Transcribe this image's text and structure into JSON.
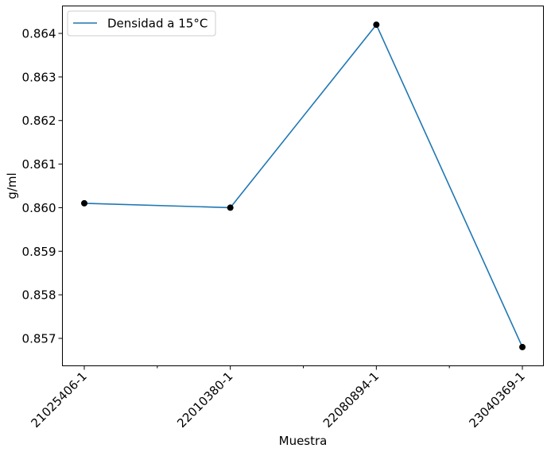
{
  "chart_data": {
    "type": "line",
    "title": "",
    "xlabel": "Muestra",
    "ylabel": "g/ml",
    "categories": [
      "21025406-1",
      "22010380-1",
      "22080894-1",
      "23040369-1"
    ],
    "series": [
      {
        "name": "Densidad a 15°C",
        "values": [
          0.8601,
          0.86,
          0.8642,
          0.8568
        ],
        "color": "#1f77b4",
        "marker_color": "#000000"
      }
    ],
    "yticks": [
      "0.857",
      "0.858",
      "0.859",
      "0.860",
      "0.861",
      "0.862",
      "0.863",
      "0.864"
    ],
    "ylim": [
      0.85637,
      0.86463
    ],
    "grid": false,
    "legend_position": "top-left"
  }
}
